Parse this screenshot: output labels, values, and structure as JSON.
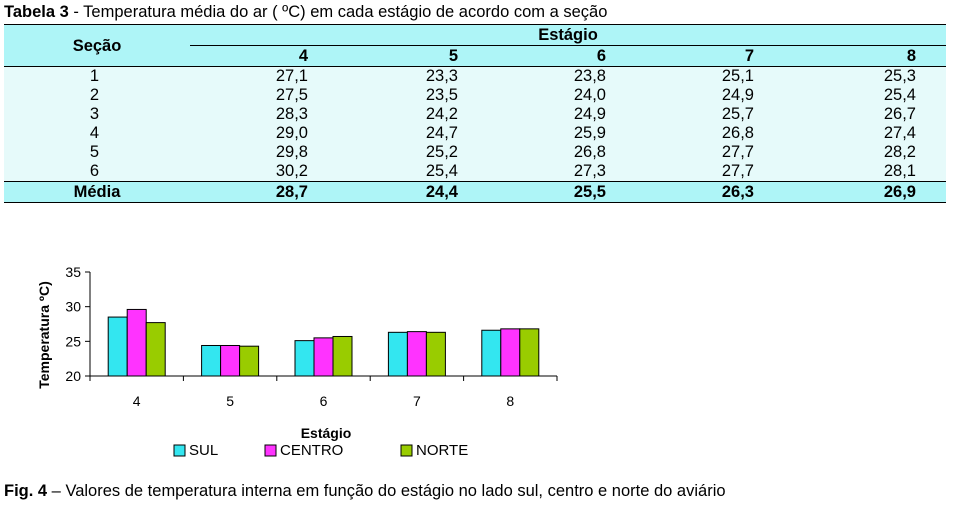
{
  "table": {
    "title_bold": "Tabela 3",
    "title_rest": " - Temperatura média do ar ( ºC) em cada estágio de acordo com a seção",
    "row_header": "Seção",
    "group_header": "Estágio",
    "stages": [
      "4",
      "5",
      "6",
      "7",
      "8"
    ],
    "rows": [
      {
        "secao": "1",
        "values": [
          "27,1",
          "23,3",
          "23,8",
          "25,1",
          "25,3"
        ]
      },
      {
        "secao": "2",
        "values": [
          "27,5",
          "23,5",
          "24,0",
          "24,9",
          "25,4"
        ]
      },
      {
        "secao": "3",
        "values": [
          "28,3",
          "24,2",
          "24,9",
          "25,7",
          "26,7"
        ]
      },
      {
        "secao": "4",
        "values": [
          "29,0",
          "24,7",
          "25,9",
          "26,8",
          "27,4"
        ]
      },
      {
        "secao": "5",
        "values": [
          "29,8",
          "25,2",
          "26,8",
          "27,7",
          "28,2"
        ]
      },
      {
        "secao": "6",
        "values": [
          "30,2",
          "25,4",
          "27,3",
          "27,7",
          "28,1"
        ]
      }
    ],
    "avg_label": "Média",
    "avg_values": [
      "28,7",
      "24,4",
      "25,5",
      "26,3",
      "26,9"
    ]
  },
  "chart_data": {
    "type": "bar",
    "categories": [
      "4",
      "5",
      "6",
      "7",
      "8"
    ],
    "series": [
      {
        "name": "SUL",
        "color": "#33e6f0",
        "values": [
          28.5,
          24.4,
          25.1,
          26.3,
          26.6
        ]
      },
      {
        "name": "CENTRO",
        "color": "#ff33ff",
        "values": [
          29.6,
          24.4,
          25.5,
          26.4,
          26.8
        ]
      },
      {
        "name": "NORTE",
        "color": "#99cc00",
        "values": [
          27.7,
          24.3,
          25.7,
          26.3,
          26.8
        ]
      }
    ],
    "xlabel": "Estágio",
    "ylabel": "Temperatura ºC)",
    "ylim": [
      20,
      35
    ],
    "yticks": [
      "20",
      "25",
      "30",
      "35"
    ],
    "legend_position": "bottom",
    "grid": false
  },
  "caption": {
    "label": "Fig. 4",
    "text": " – Valores de temperatura interna em função do estágio no lado sul, centro e norte do aviário"
  }
}
